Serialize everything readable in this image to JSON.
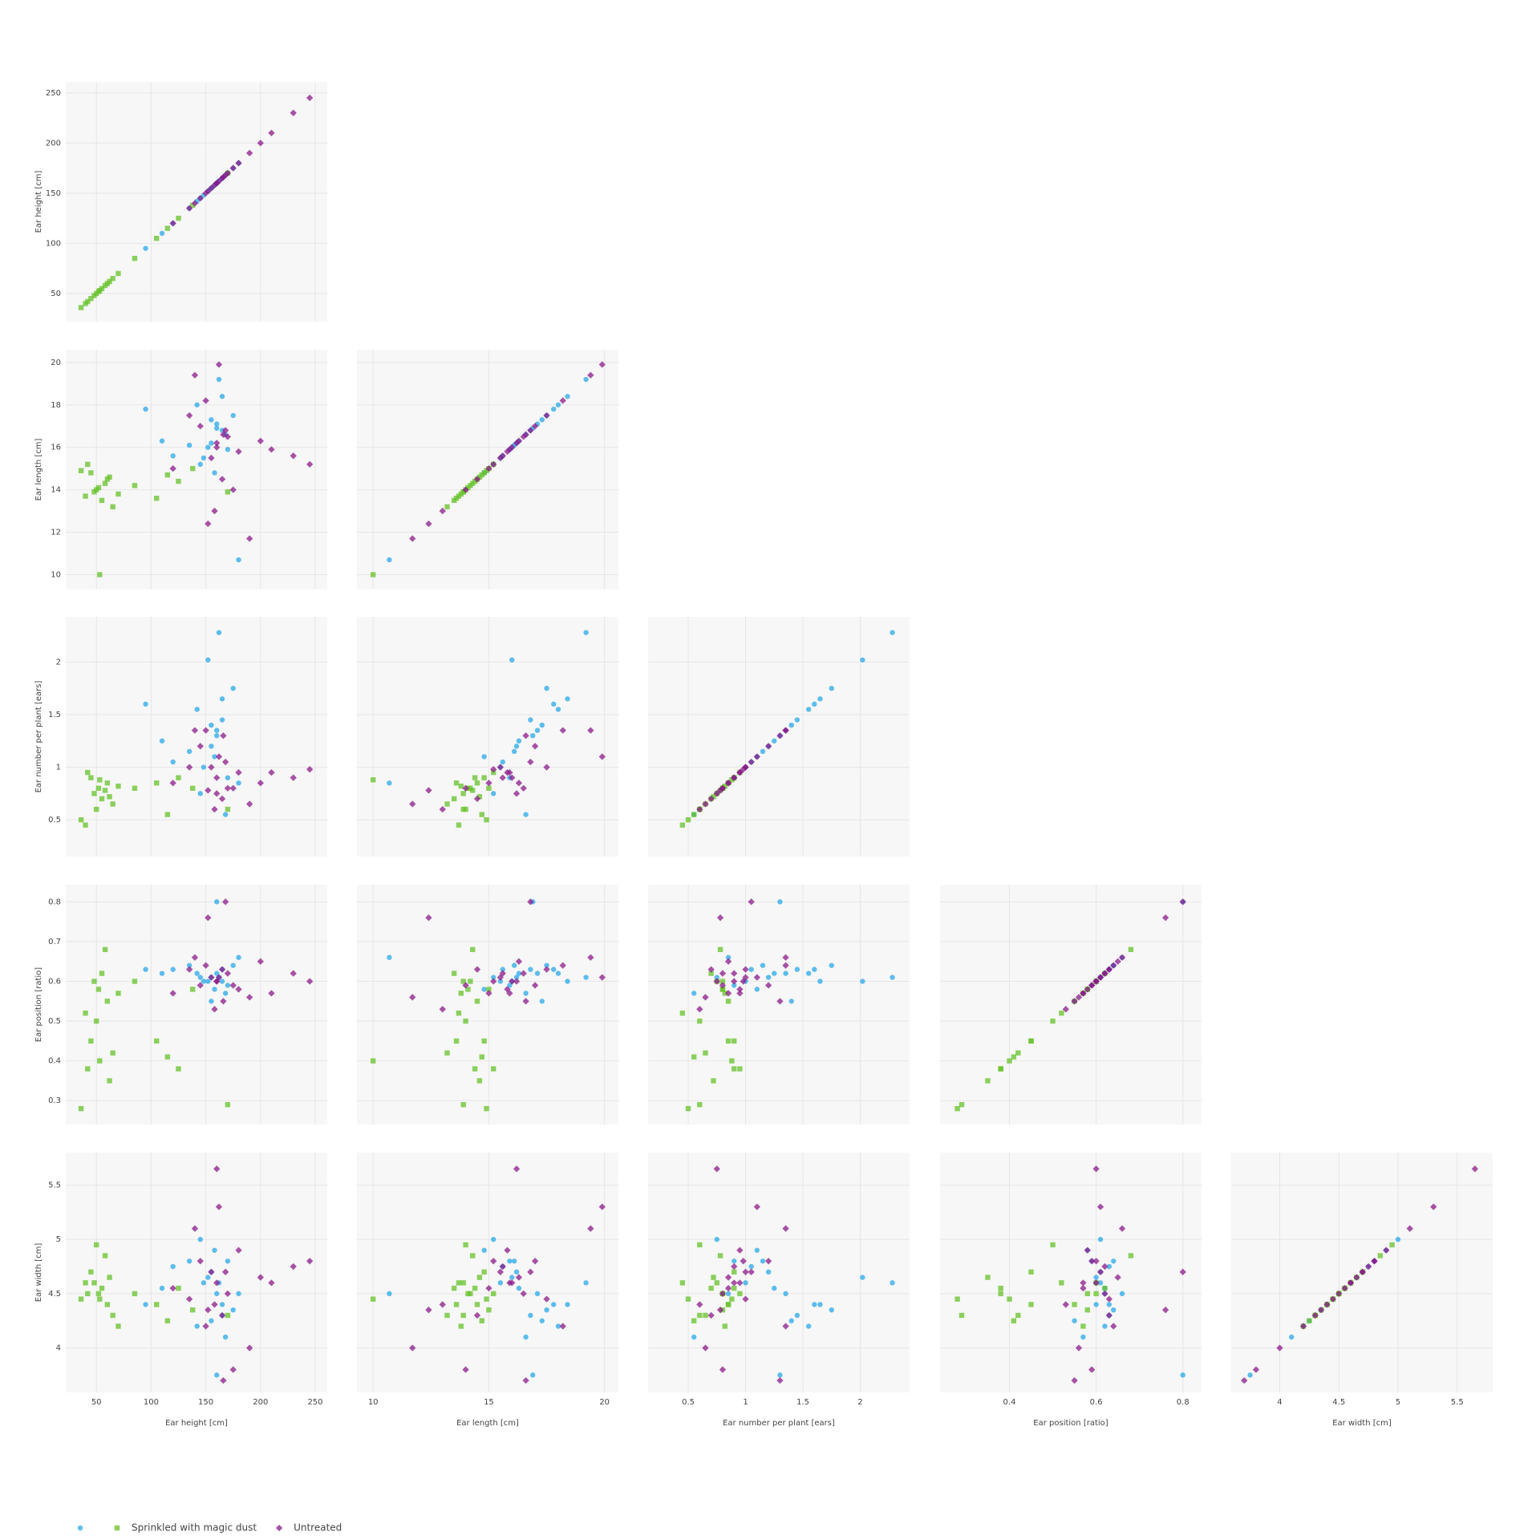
{
  "chart_data": {
    "type": "splom",
    "grid": true,
    "legend": "bottom-left",
    "dimensions": [
      {
        "label": "Ear height [cm]",
        "lim": [
          22,
          261
        ],
        "xticks": [
          50,
          100,
          150,
          200,
          250
        ],
        "yticks": [
          50,
          100,
          150,
          200,
          250
        ]
      },
      {
        "label": "Ear length [cm]",
        "lim": [
          9.3,
          20.6
        ],
        "xticks": [
          10,
          15,
          20
        ],
        "yticks": [
          10,
          12,
          14,
          16,
          18,
          20
        ]
      },
      {
        "label": "Ear number per plant [ears]",
        "lim": [
          0.15,
          2.43
        ],
        "xticks": [
          0.5,
          1,
          1.5,
          2
        ],
        "yticks": [
          0.5,
          1,
          1.5,
          2
        ]
      },
      {
        "label": "Ear position [ratio]",
        "lim": [
          0.24,
          0.843
        ],
        "xticks": [
          0.4,
          0.6,
          0.8
        ],
        "yticks": [
          0.3,
          0.4,
          0.5,
          0.6,
          0.7,
          0.8
        ]
      },
      {
        "label": "Ear width [cm]",
        "lim": [
          3.59,
          5.8
        ],
        "xticks": [
          4,
          4.5,
          5,
          5.5
        ],
        "yticks": [
          4,
          4.5,
          5,
          5.5
        ]
      }
    ],
    "series": [
      {
        "color": "#2aa8e8",
        "symbol": "circle",
        "values": [
          [
            155,
            16.2,
            1.2,
            0.61,
            4.7
          ],
          [
            160,
            17.1,
            1.35,
            0.62,
            4.5
          ],
          [
            148,
            15.5,
            1.0,
            0.6,
            4.6
          ],
          [
            165,
            16.8,
            1.45,
            0.63,
            4.3
          ],
          [
            170,
            15.9,
            0.9,
            0.59,
            4.8
          ],
          [
            142,
            18.0,
            1.55,
            0.62,
            4.2
          ],
          [
            158,
            14.8,
            1.1,
            0.58,
            4.9
          ],
          [
            95,
            17.8,
            1.6,
            0.63,
            4.4
          ],
          [
            110,
            16.3,
            1.25,
            0.62,
            4.55
          ],
          [
            162,
            19.2,
            2.28,
            0.61,
            4.6
          ],
          [
            152,
            16.0,
            2.02,
            0.6,
            4.65
          ],
          [
            175,
            17.5,
            1.75,
            0.64,
            4.35
          ],
          [
            168,
            16.6,
            0.55,
            0.57,
            4.1
          ],
          [
            145,
            15.2,
            0.75,
            0.61,
            5.0
          ],
          [
            180,
            10.7,
            0.85,
            0.66,
            4.5
          ],
          [
            160,
            16.9,
            1.3,
            0.8,
            3.75
          ],
          [
            120,
            15.6,
            1.05,
            0.63,
            4.75
          ],
          [
            155,
            17.3,
            1.4,
            0.55,
            4.25
          ],
          [
            165,
            18.4,
            1.65,
            0.6,
            4.4
          ],
          [
            135,
            16.1,
            1.15,
            0.64,
            4.8
          ]
        ]
      },
      {
        "name": "Sprinkled with magic dust",
        "color": "#66c22a",
        "symbol": "square",
        "values": [
          [
            52,
            14.1,
            0.8,
            0.58,
            4.5
          ],
          [
            48,
            13.9,
            0.75,
            0.6,
            4.6
          ],
          [
            60,
            14.5,
            0.85,
            0.55,
            4.4
          ],
          [
            55,
            13.5,
            0.7,
            0.62,
            4.55
          ],
          [
            45,
            14.8,
            0.9,
            0.45,
            4.7
          ],
          [
            65,
            13.2,
            0.65,
            0.42,
            4.3
          ],
          [
            58,
            14.3,
            0.78,
            0.68,
            4.85
          ],
          [
            42,
            15.2,
            0.95,
            0.38,
            4.5
          ],
          [
            70,
            13.8,
            0.82,
            0.57,
            4.2
          ],
          [
            50,
            14.0,
            0.6,
            0.5,
            4.95
          ],
          [
            53,
            10.0,
            0.88,
            0.4,
            4.45
          ],
          [
            62,
            14.6,
            0.72,
            0.35,
            4.65
          ],
          [
            85,
            14.2,
            0.8,
            0.6,
            4.5
          ],
          [
            105,
            13.6,
            0.85,
            0.45,
            4.4
          ],
          [
            125,
            14.4,
            0.9,
            0.38,
            4.55
          ],
          [
            138,
            15.0,
            0.8,
            0.58,
            4.35
          ],
          [
            170,
            13.9,
            0.6,
            0.29,
            4.3
          ],
          [
            40,
            13.7,
            0.45,
            0.52,
            4.6
          ],
          [
            36,
            14.9,
            0.5,
            0.28,
            4.45
          ],
          [
            115,
            14.7,
            0.55,
            0.41,
            4.25
          ]
        ]
      },
      {
        "name": "Untreated",
        "color": "#8b1a89",
        "symbol": "diamond",
        "values": [
          [
            160,
            16.0,
            0.9,
            0.6,
            4.6
          ],
          [
            155,
            15.5,
            1.0,
            0.61,
            4.7
          ],
          [
            170,
            16.5,
            0.8,
            0.62,
            4.5
          ],
          [
            145,
            17.0,
            1.2,
            0.59,
            4.8
          ],
          [
            165,
            14.5,
            0.7,
            0.63,
            4.3
          ],
          [
            180,
            15.8,
            0.95,
            0.58,
            4.9
          ],
          [
            150,
            18.2,
            1.35,
            0.64,
            4.2
          ],
          [
            200,
            16.3,
            0.85,
            0.65,
            4.65
          ],
          [
            230,
            15.6,
            0.9,
            0.62,
            4.75
          ],
          [
            245,
            15.2,
            0.98,
            0.6,
            4.8
          ],
          [
            190,
            11.7,
            0.65,
            0.56,
            4.0
          ],
          [
            140,
            19.4,
            1.35,
            0.66,
            5.1
          ],
          [
            162,
            19.9,
            1.1,
            0.61,
            5.3
          ],
          [
            158,
            13.0,
            0.6,
            0.53,
            4.4
          ],
          [
            120,
            15.0,
            0.85,
            0.57,
            4.55
          ],
          [
            168,
            16.8,
            1.05,
            0.8,
            4.7
          ],
          [
            160,
            16.2,
            0.75,
            0.6,
            5.65
          ],
          [
            175,
            14.0,
            0.8,
            0.59,
            3.8
          ],
          [
            135,
            17.5,
            1.0,
            0.63,
            4.45
          ],
          [
            210,
            15.9,
            0.95,
            0.57,
            4.6
          ],
          [
            152,
            12.4,
            0.78,
            0.76,
            4.35
          ],
          [
            166,
            16.6,
            1.3,
            0.55,
            3.7
          ]
        ]
      }
    ]
  }
}
